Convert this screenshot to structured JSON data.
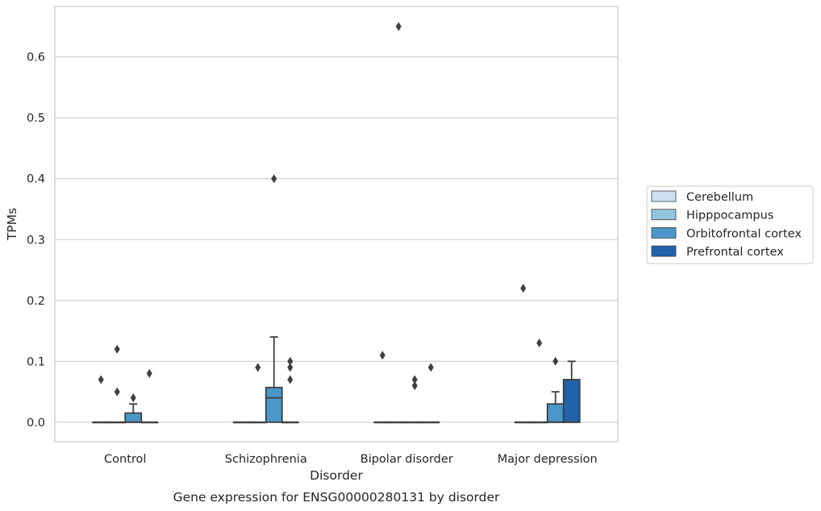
{
  "chart_data": {
    "type": "box",
    "title": "",
    "caption": "Gene expression for ENSG00000280131 by disorder",
    "xlabel": "Disorder",
    "ylabel": "TPMs",
    "ylim": [
      -0.032,
      0.683
    ],
    "yticks": [
      0.0,
      0.1,
      0.2,
      0.3,
      0.4,
      0.5,
      0.6
    ],
    "ytick_labels": [
      "0.0",
      "0.1",
      "0.2",
      "0.3",
      "0.4",
      "0.5",
      "0.6"
    ],
    "grid": "horizontal",
    "legend_position": "right",
    "categories": [
      "Control",
      "Schizophrenia",
      "Bipolar disorder",
      "Major depression"
    ],
    "series": [
      {
        "name": "Cerebellum",
        "color": "#cde0f1",
        "boxes": [
          {
            "q1": 0,
            "median": 0,
            "q3": 0,
            "whisker_low": 0,
            "whisker_high": 0,
            "outliers": [
              0.07
            ]
          },
          {
            "q1": 0,
            "median": 0,
            "q3": 0,
            "whisker_low": 0,
            "whisker_high": 0,
            "outliers": []
          },
          {
            "q1": 0,
            "median": 0,
            "q3": 0,
            "whisker_low": 0,
            "whisker_high": 0,
            "outliers": [
              0.11
            ]
          },
          {
            "q1": 0,
            "median": 0,
            "q3": 0,
            "whisker_low": 0,
            "whisker_high": 0,
            "outliers": [
              0.22
            ]
          }
        ]
      },
      {
        "name": "Hipppocampus",
        "color": "#93c4de",
        "boxes": [
          {
            "q1": 0,
            "median": 0,
            "q3": 0,
            "whisker_low": 0,
            "whisker_high": 0,
            "outliers": [
              0.12,
              0.05
            ]
          },
          {
            "q1": 0,
            "median": 0,
            "q3": 0,
            "whisker_low": 0,
            "whisker_high": 0,
            "outliers": [
              0.09
            ]
          },
          {
            "q1": 0,
            "median": 0,
            "q3": 0,
            "whisker_low": 0,
            "whisker_high": 0,
            "outliers": [
              0.65
            ]
          },
          {
            "q1": 0,
            "median": 0,
            "q3": 0,
            "whisker_low": 0,
            "whisker_high": 0,
            "outliers": [
              0.13
            ]
          }
        ]
      },
      {
        "name": "Orbitofrontal cortex",
        "color": "#4b97c9",
        "boxes": [
          {
            "q1": 0,
            "median": 0,
            "q3": 0.015,
            "whisker_low": 0,
            "whisker_high": 0.03,
            "outliers": [
              0.04
            ]
          },
          {
            "q1": 0,
            "median": 0.04,
            "q3": 0.057,
            "whisker_low": 0,
            "whisker_high": 0.14,
            "outliers": [
              0.4
            ]
          },
          {
            "q1": 0,
            "median": 0,
            "q3": 0,
            "whisker_low": 0,
            "whisker_high": 0,
            "outliers": [
              0.07,
              0.06
            ]
          },
          {
            "q1": 0,
            "median": 0,
            "q3": 0.03,
            "whisker_low": 0,
            "whisker_high": 0.05,
            "outliers": [
              0.1
            ]
          }
        ]
      },
      {
        "name": "Prefrontal cortex",
        "color": "#2163aa",
        "boxes": [
          {
            "q1": 0,
            "median": 0,
            "q3": 0,
            "whisker_low": 0,
            "whisker_high": 0,
            "outliers": [
              0.08
            ]
          },
          {
            "q1": 0,
            "median": 0,
            "q3": 0,
            "whisker_low": 0,
            "whisker_high": 0,
            "outliers": [
              0.1,
              0.09,
              0.07
            ]
          },
          {
            "q1": 0,
            "median": 0,
            "q3": 0,
            "whisker_low": 0,
            "whisker_high": 0,
            "outliers": [
              0.09
            ]
          },
          {
            "q1": 0,
            "median": 0,
            "q3": 0.07,
            "whisker_low": 0,
            "whisker_high": 0.1,
            "outliers": []
          }
        ]
      }
    ]
  }
}
